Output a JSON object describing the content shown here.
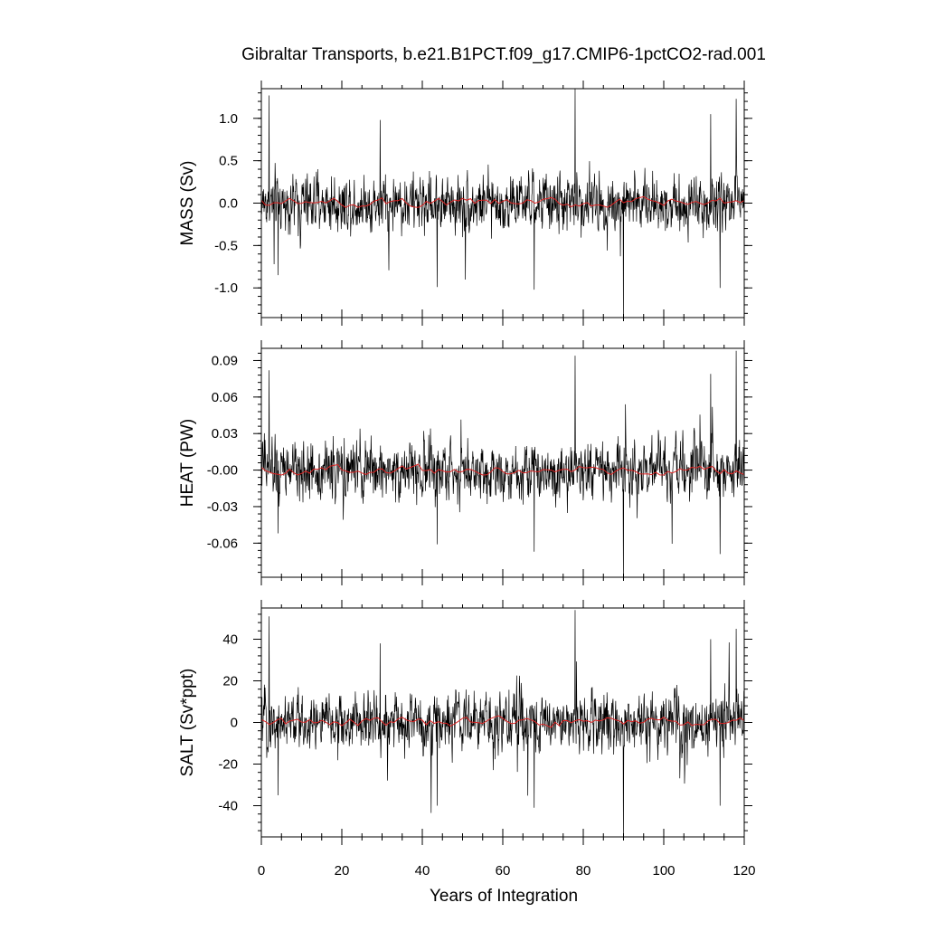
{
  "chart_data": {
    "type": "line",
    "title": "Gibraltar Transports, b.e21.B1PCT.f09_g17.CMIP6-1pctCO2-rad.001",
    "xlabel": "Years of Integration",
    "xlim": [
      0,
      120
    ],
    "xticks": [
      0,
      20,
      40,
      60,
      80,
      100,
      120
    ],
    "xtick_labels": [
      "0",
      "20",
      "40",
      "60",
      "80",
      "100",
      "120"
    ],
    "grid": false,
    "panels": [
      {
        "ylabel": "MASS (Sv)",
        "ylim": [
          -1.35,
          1.35
        ],
        "yticks": [
          1.0,
          0.5,
          0.0,
          -0.5,
          -1.0
        ],
        "ytick_labels": [
          "1.0",
          "0.5",
          "0.0",
          "-0.5",
          "-1.0"
        ],
        "series": [
          {
            "role": "monthly",
            "color": "#000000",
            "amplitude": 0.16,
            "spikes": [
              [
                1.9,
                1.27
              ],
              [
                3.2,
                -0.72
              ],
              [
                4.2,
                -0.85
              ],
              [
                29.5,
                0.98
              ],
              [
                43.7,
                -0.99
              ],
              [
                67.8,
                -1.02
              ],
              [
                78.0,
                1.35
              ],
              [
                90.0,
                -1.35
              ],
              [
                111.7,
                1.05
              ],
              [
                114.0,
                -1.0
              ],
              [
                118.0,
                1.23
              ]
            ]
          },
          {
            "role": "annual",
            "color": "#dd2222",
            "amplitude": 0.045,
            "min": -0.05,
            "max": 0.14
          }
        ]
      },
      {
        "ylabel": "HEAT (PW)",
        "ylim": [
          -0.088,
          0.1
        ],
        "yticks": [
          0.09,
          0.06,
          0.03,
          0.0,
          -0.03,
          -0.06
        ],
        "ytick_labels": [
          "0.09",
          "0.06",
          "0.03",
          "-0.00",
          "-0.03",
          "-0.06"
        ],
        "series": [
          {
            "role": "monthly",
            "color": "#000000",
            "amplitude": 0.011,
            "spikes": [
              [
                1.9,
                0.082
              ],
              [
                4.2,
                -0.052
              ],
              [
                43.7,
                -0.061
              ],
              [
                67.8,
                -0.067
              ],
              [
                78.0,
                0.094
              ],
              [
                90.0,
                -0.088
              ],
              [
                111.7,
                0.079
              ],
              [
                114.0,
                -0.069
              ],
              [
                118.0,
                0.098
              ]
            ]
          },
          {
            "role": "annual",
            "color": "#dd2222",
            "amplitude": 0.003,
            "min": -0.004,
            "max": 0.012
          }
        ]
      },
      {
        "ylabel": "SALT (Sv*ppt)",
        "ylim": [
          -55,
          55
        ],
        "yticks": [
          40,
          20,
          0,
          -20,
          -40
        ],
        "ytick_labels": [
          "40",
          "20",
          "0",
          "-20",
          "-40"
        ],
        "series": [
          {
            "role": "monthly",
            "color": "#000000",
            "amplitude": 6.5,
            "spikes": [
              [
                1.9,
                51
              ],
              [
                4.2,
                -35
              ],
              [
                29.5,
                38
              ],
              [
                43.7,
                -40
              ],
              [
                67.8,
                -41
              ],
              [
                78.0,
                54
              ],
              [
                90.0,
                -55
              ],
              [
                111.7,
                40
              ],
              [
                114.0,
                -40
              ],
              [
                118.0,
                45
              ]
            ]
          },
          {
            "role": "annual",
            "color": "#dd2222",
            "amplitude": 1.8,
            "min": -4,
            "max": 5
          }
        ]
      }
    ]
  }
}
